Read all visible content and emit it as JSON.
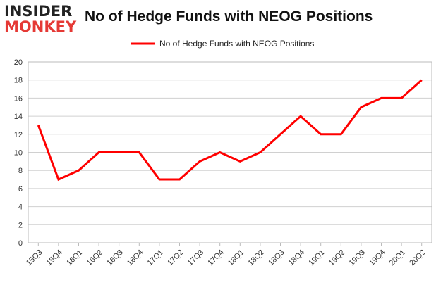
{
  "logo": {
    "top": "INSIDER",
    "bottom": "MONKEY"
  },
  "chart_data": {
    "type": "line",
    "title": "No of Hedge Funds with NEOG Positions",
    "categories": [
      "15Q3",
      "15Q4",
      "16Q1",
      "16Q2",
      "16Q3",
      "16Q4",
      "17Q1",
      "17Q2",
      "17Q3",
      "17Q4",
      "18Q1",
      "18Q2",
      "18Q3",
      "18Q4",
      "19Q1",
      "19Q2",
      "19Q3",
      "19Q4",
      "20Q1",
      "20Q2"
    ],
    "series": [
      {
        "name": "No of Hedge Funds with NEOG Positions",
        "values": [
          13,
          7,
          8,
          10,
          10,
          10,
          7,
          7,
          9,
          10,
          9,
          10,
          12,
          14,
          12,
          12,
          15,
          16,
          16,
          18
        ]
      }
    ],
    "ylim": [
      0,
      20
    ],
    "yticks": [
      0,
      2,
      4,
      6,
      8,
      10,
      12,
      14,
      16,
      18,
      20
    ],
    "grid": true,
    "legend_position": "top-center",
    "line_color": "#ff0000"
  }
}
